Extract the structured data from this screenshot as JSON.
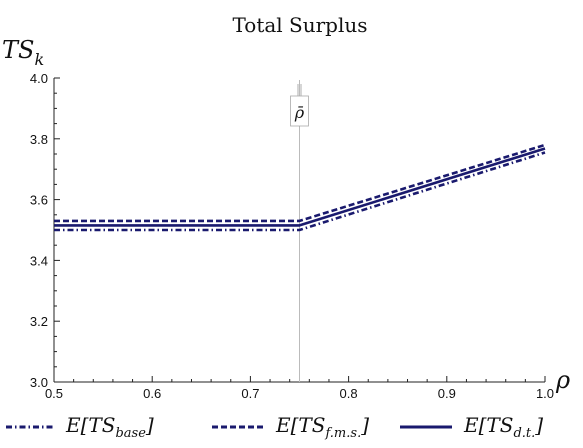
{
  "chart_data": {
    "type": "line",
    "title": "Total Surplus",
    "ylabel": "TS",
    "ylabel_sub": "k",
    "xlabel": "ρ",
    "xlim": [
      0.5,
      1.0
    ],
    "ylim": [
      3.0,
      4.0
    ],
    "x_ticks": [
      "0.5",
      "0.6",
      "0.7",
      "0.8",
      "0.9",
      "1.0"
    ],
    "y_ticks": [
      "3.0",
      "3.2",
      "3.4",
      "3.6",
      "3.8",
      "4.0"
    ],
    "annotation": {
      "label": "ρ̄",
      "x": 0.75
    },
    "series": [
      {
        "name": "E[TS",
        "name_sub": "base",
        "name_end": "]",
        "style": "dashdot",
        "points": [
          [
            0.5,
            3.5
          ],
          [
            0.75,
            3.5
          ],
          [
            1.0,
            3.755
          ]
        ]
      },
      {
        "name": "E[TS",
        "name_sub": "f.m.s.",
        "name_end": "]",
        "style": "dashed",
        "points": [
          [
            0.5,
            3.53
          ],
          [
            0.75,
            3.53
          ],
          [
            1.0,
            3.78
          ]
        ]
      },
      {
        "name": "E[TS",
        "name_sub": "d.t.",
        "name_end": "]",
        "style": "solid",
        "points": [
          [
            0.5,
            3.515
          ],
          [
            0.75,
            3.515
          ],
          [
            1.0,
            3.768
          ]
        ]
      }
    ],
    "colors": {
      "line": "#1a1a6e",
      "axis": "#222222",
      "guide": "#bbbbbb"
    },
    "grid": false,
    "legend": "bottom"
  }
}
